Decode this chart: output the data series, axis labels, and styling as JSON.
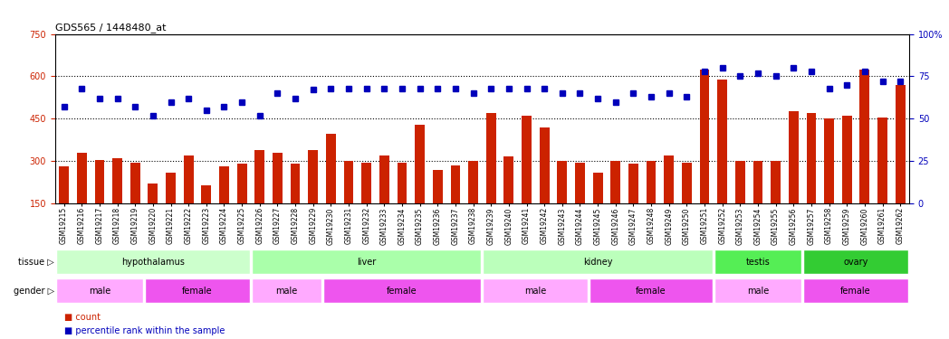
{
  "title": "GDS565 / 1448480_at",
  "samples": [
    "GSM19215",
    "GSM19216",
    "GSM19217",
    "GSM19218",
    "GSM19219",
    "GSM19220",
    "GSM19221",
    "GSM19222",
    "GSM19223",
    "GSM19224",
    "GSM19225",
    "GSM19226",
    "GSM19227",
    "GSM19228",
    "GSM19229",
    "GSM19230",
    "GSM19231",
    "GSM19232",
    "GSM19233",
    "GSM19234",
    "GSM19235",
    "GSM19236",
    "GSM19237",
    "GSM19238",
    "GSM19239",
    "GSM19240",
    "GSM19241",
    "GSM19242",
    "GSM19243",
    "GSM19244",
    "GSM19245",
    "GSM19246",
    "GSM19247",
    "GSM19248",
    "GSM19249",
    "GSM19250",
    "GSM19251",
    "GSM19252",
    "GSM19253",
    "GSM19254",
    "GSM19255",
    "GSM19256",
    "GSM19257",
    "GSM19258",
    "GSM19259",
    "GSM19260",
    "GSM19261",
    "GSM19262"
  ],
  "counts": [
    280,
    330,
    305,
    310,
    295,
    220,
    260,
    320,
    215,
    280,
    290,
    340,
    330,
    290,
    340,
    395,
    300,
    295,
    320,
    295,
    430,
    270,
    285,
    300,
    470,
    315,
    460,
    420,
    300,
    295,
    260,
    300,
    290,
    300,
    320,
    295,
    625,
    590,
    300,
    300,
    300,
    475,
    470,
    450,
    460,
    625,
    455,
    570
  ],
  "percentiles": [
    57,
    68,
    62,
    62,
    57,
    52,
    60,
    62,
    55,
    57,
    60,
    52,
    65,
    62,
    67,
    68,
    68,
    68,
    68,
    68,
    68,
    68,
    68,
    65,
    68,
    68,
    68,
    68,
    65,
    65,
    62,
    60,
    65,
    63,
    65,
    63,
    78,
    80,
    75,
    77,
    75,
    80,
    78,
    68,
    70,
    78,
    72,
    72
  ],
  "ylim_left": [
    150,
    750
  ],
  "ylim_right": [
    0,
    100
  ],
  "yticks_left": [
    150,
    300,
    450,
    600,
    750
  ],
  "yticks_right": [
    0,
    25,
    50,
    75,
    100
  ],
  "bar_color": "#cc2200",
  "dot_color": "#0000bb",
  "hline_values": [
    300,
    450,
    600
  ],
  "tissues": [
    {
      "label": "hypothalamus",
      "start": 0,
      "end": 11,
      "color": "#ccffcc"
    },
    {
      "label": "liver",
      "start": 11,
      "end": 24,
      "color": "#aaffaa"
    },
    {
      "label": "kidney",
      "start": 24,
      "end": 37,
      "color": "#bbffbb"
    },
    {
      "label": "testis",
      "start": 37,
      "end": 42,
      "color": "#55ee55"
    },
    {
      "label": "ovary",
      "start": 42,
      "end": 48,
      "color": "#33cc33"
    }
  ],
  "genders": [
    {
      "label": "male",
      "start": 0,
      "end": 5,
      "color": "#ffaaff"
    },
    {
      "label": "female",
      "start": 5,
      "end": 11,
      "color": "#ee55ee"
    },
    {
      "label": "male",
      "start": 11,
      "end": 15,
      "color": "#ffaaff"
    },
    {
      "label": "female",
      "start": 15,
      "end": 24,
      "color": "#ee55ee"
    },
    {
      "label": "male",
      "start": 24,
      "end": 30,
      "color": "#ffaaff"
    },
    {
      "label": "female",
      "start": 30,
      "end": 37,
      "color": "#ee55ee"
    },
    {
      "label": "male",
      "start": 37,
      "end": 42,
      "color": "#ffaaff"
    },
    {
      "label": "female",
      "start": 42,
      "end": 48,
      "color": "#ee55ee"
    }
  ]
}
